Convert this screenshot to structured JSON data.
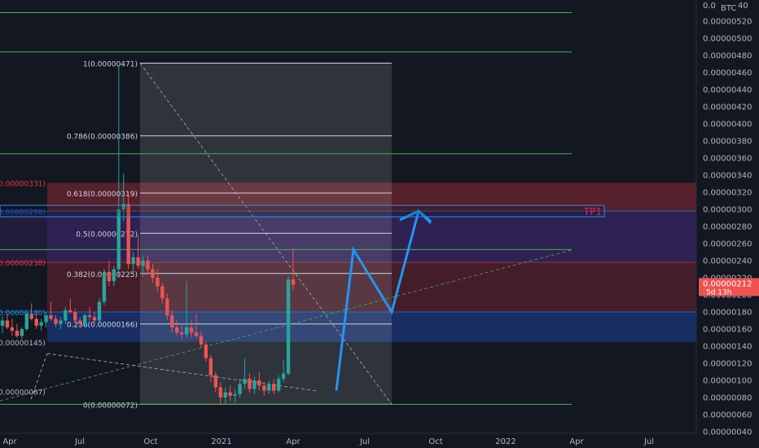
{
  "chart_data": {
    "type": "candlestick",
    "symbol_unit": "BTC",
    "y_axis": {
      "labels": [
        "0.00000520",
        "0.00000500",
        "0.00000480",
        "0.00000460",
        "0.00000440",
        "0.00000420",
        "0.00000400",
        "0.00000380",
        "0.00000360",
        "0.00000340",
        "0.00000320",
        "0.00000300",
        "0.00000280",
        "0.00000260",
        "0.00000240",
        "0.00000220",
        "0.00000200",
        "0.00000180",
        "0.00000160",
        "0.00000140",
        "0.00000120",
        "0.00000100",
        "0.00000080",
        "0.00000060",
        "0.00000040"
      ],
      "top_partial": "0.0",
      "top_partial_tail": "40",
      "ylim": [
        4e-07,
        5.45e-07
      ]
    },
    "x_axis": {
      "labels": [
        "Apr",
        "Jul",
        "Oct",
        "2021",
        "Apr",
        "Jul",
        "Oct",
        "2022",
        "Apr",
        "Jul"
      ]
    },
    "current_price": {
      "value": "0.00000212",
      "countdown": "5d 13h",
      "color": "#ef5350"
    },
    "fibonacci": [
      {
        "ratio": "1",
        "label": "1(0.00000471)",
        "price": 4.71e-06
      },
      {
        "ratio": "0.786",
        "label": "0.786(0.00000386)",
        "price": 3.86e-06
      },
      {
        "ratio": "0.618",
        "label": "0.618(0.00000319)",
        "price": 3.19e-06
      },
      {
        "ratio": "0.5",
        "label": "0.5(0.00000272)",
        "price": 2.72e-06
      },
      {
        "ratio": "0.382",
        "label": "0.382(0.00000225)",
        "price": 2.25e-06
      },
      {
        "ratio": "0.236",
        "label": "0.236(0.00000166)",
        "price": 1.66e-06
      },
      {
        "ratio": "0",
        "label": "0(0.00000072)",
        "price": 7.2e-07
      }
    ],
    "left_price_labels": [
      {
        "text": "0.00000331)",
        "color": "#f23645"
      },
      {
        "text": "0.00000298)",
        "color": "#2962ff"
      },
      {
        "text": "0.00000238)",
        "color": "#f23645"
      },
      {
        "text": "0.00000180)",
        "color": "#2196f3"
      },
      {
        "text": "0.00000145)",
        "color": "#b2b5be"
      },
      {
        "text": "0.00000087)",
        "color": "#b2b5be"
      }
    ],
    "target_label": "TP1",
    "horizontal_levels": [
      5.3e-06,
      4.84e-06,
      3.65e-06,
      2.53e-06,
      7.2e-07
    ],
    "zones": [
      {
        "kind": "red",
        "from": 3.31e-06,
        "to": 2.98e-06
      },
      {
        "kind": "purple",
        "from": 2.98e-06,
        "to": 2.38e-06
      },
      {
        "kind": "red-dark",
        "from": 2.38e-06,
        "to": 1.8e-06
      },
      {
        "kind": "blue",
        "from": 1.8e-06,
        "to": 1.45e-06
      }
    ],
    "candles": [
      {
        "o": 1.64,
        "h": 1.75,
        "l": 1.55,
        "c": 1.7
      },
      {
        "o": 1.7,
        "h": 1.78,
        "l": 1.6,
        "c": 1.62
      },
      {
        "o": 1.62,
        "h": 1.72,
        "l": 1.52,
        "c": 1.58
      },
      {
        "o": 1.58,
        "h": 1.66,
        "l": 1.5,
        "c": 1.52
      },
      {
        "o": 1.52,
        "h": 1.62,
        "l": 1.48,
        "c": 1.6
      },
      {
        "o": 1.6,
        "h": 1.8,
        "l": 1.58,
        "c": 1.78
      },
      {
        "o": 1.78,
        "h": 1.9,
        "l": 1.7,
        "c": 1.72
      },
      {
        "o": 1.72,
        "h": 1.78,
        "l": 1.6,
        "c": 1.64
      },
      {
        "o": 1.64,
        "h": 1.72,
        "l": 1.58,
        "c": 1.68
      },
      {
        "o": 1.68,
        "h": 1.8,
        "l": 1.62,
        "c": 1.76
      },
      {
        "o": 1.76,
        "h": 1.92,
        "l": 1.7,
        "c": 1.72
      },
      {
        "o": 1.72,
        "h": 1.76,
        "l": 1.62,
        "c": 1.66
      },
      {
        "o": 1.66,
        "h": 1.74,
        "l": 1.6,
        "c": 1.7
      },
      {
        "o": 1.7,
        "h": 1.86,
        "l": 1.66,
        "c": 1.82
      },
      {
        "o": 1.82,
        "h": 1.96,
        "l": 1.78,
        "c": 1.8
      },
      {
        "o": 1.8,
        "h": 1.84,
        "l": 1.66,
        "c": 1.7
      },
      {
        "o": 1.7,
        "h": 1.74,
        "l": 1.62,
        "c": 1.66
      },
      {
        "o": 1.66,
        "h": 1.78,
        "l": 1.62,
        "c": 1.76
      },
      {
        "o": 1.76,
        "h": 1.86,
        "l": 1.7,
        "c": 1.74
      },
      {
        "o": 1.74,
        "h": 1.8,
        "l": 1.66,
        "c": 1.7
      },
      {
        "o": 1.7,
        "h": 1.96,
        "l": 1.68,
        "c": 1.92
      },
      {
        "o": 1.92,
        "h": 2.3,
        "l": 1.88,
        "c": 2.26
      },
      {
        "o": 2.26,
        "h": 2.4,
        "l": 2.1,
        "c": 2.16
      },
      {
        "o": 2.16,
        "h": 2.34,
        "l": 2.1,
        "c": 2.3
      },
      {
        "o": 2.3,
        "h": 4.67,
        "l": 2.2,
        "c": 3.0
      },
      {
        "o": 3.0,
        "h": 3.42,
        "l": 2.86,
        "c": 3.06
      },
      {
        "o": 3.06,
        "h": 3.2,
        "l": 2.3,
        "c": 2.36
      },
      {
        "o": 2.36,
        "h": 2.5,
        "l": 2.24,
        "c": 2.44
      },
      {
        "o": 2.44,
        "h": 2.7,
        "l": 2.3,
        "c": 2.34
      },
      {
        "o": 2.34,
        "h": 2.46,
        "l": 2.22,
        "c": 2.4
      },
      {
        "o": 2.4,
        "h": 2.46,
        "l": 2.26,
        "c": 2.3
      },
      {
        "o": 2.3,
        "h": 2.36,
        "l": 2.14,
        "c": 2.2
      },
      {
        "o": 2.2,
        "h": 2.3,
        "l": 2.04,
        "c": 2.1
      },
      {
        "o": 2.1,
        "h": 2.14,
        "l": 1.9,
        "c": 1.96
      },
      {
        "o": 1.96,
        "h": 2.02,
        "l": 1.7,
        "c": 1.76
      },
      {
        "o": 1.76,
        "h": 1.82,
        "l": 1.56,
        "c": 1.62
      },
      {
        "o": 1.62,
        "h": 1.7,
        "l": 1.52,
        "c": 1.56
      },
      {
        "o": 1.56,
        "h": 1.64,
        "l": 1.48,
        "c": 1.54
      },
      {
        "o": 1.54,
        "h": 2.16,
        "l": 1.5,
        "c": 1.62
      },
      {
        "o": 1.62,
        "h": 1.7,
        "l": 1.5,
        "c": 1.56
      },
      {
        "o": 1.56,
        "h": 1.78,
        "l": 1.5,
        "c": 1.52
      },
      {
        "o": 1.52,
        "h": 1.58,
        "l": 1.38,
        "c": 1.42
      },
      {
        "o": 1.42,
        "h": 1.46,
        "l": 1.22,
        "c": 1.26
      },
      {
        "o": 1.26,
        "h": 1.3,
        "l": 0.98,
        "c": 1.06
      },
      {
        "o": 1.06,
        "h": 1.1,
        "l": 0.86,
        "c": 0.92
      },
      {
        "o": 0.92,
        "h": 0.98,
        "l": 0.72,
        "c": 0.8
      },
      {
        "o": 0.8,
        "h": 0.92,
        "l": 0.72,
        "c": 0.86
      },
      {
        "o": 0.86,
        "h": 0.94,
        "l": 0.76,
        "c": 0.82
      },
      {
        "o": 0.82,
        "h": 0.9,
        "l": 0.74,
        "c": 0.84
      },
      {
        "o": 0.84,
        "h": 1.02,
        "l": 0.8,
        "c": 0.96
      },
      {
        "o": 0.96,
        "h": 1.26,
        "l": 0.9,
        "c": 1.02
      },
      {
        "o": 1.02,
        "h": 1.08,
        "l": 0.86,
        "c": 0.9
      },
      {
        "o": 0.9,
        "h": 1.04,
        "l": 0.84,
        "c": 1.0
      },
      {
        "o": 1.0,
        "h": 1.1,
        "l": 0.88,
        "c": 0.94
      },
      {
        "o": 0.94,
        "h": 0.98,
        "l": 0.82,
        "c": 0.88
      },
      {
        "o": 0.88,
        "h": 1.0,
        "l": 0.84,
        "c": 0.96
      },
      {
        "o": 0.96,
        "h": 1.02,
        "l": 0.84,
        "c": 0.88
      },
      {
        "o": 0.88,
        "h": 1.06,
        "l": 0.86,
        "c": 1.02
      },
      {
        "o": 1.02,
        "h": 1.24,
        "l": 0.98,
        "c": 1.08
      },
      {
        "o": 1.08,
        "h": 2.22,
        "l": 1.06,
        "c": 2.18
      },
      {
        "o": 2.18,
        "h": 2.54,
        "l": 2.06,
        "c": 2.12
      }
    ],
    "projection": [
      {
        "t": 0,
        "y": 8.8e-07
      },
      {
        "t": 1,
        "y": 2.53e-06
      },
      {
        "t": 2,
        "y": 1.8e-06
      },
      {
        "t": 3,
        "y": 2.98e-06
      },
      {
        "t": 4,
        "y": 2.84e-06
      }
    ]
  }
}
